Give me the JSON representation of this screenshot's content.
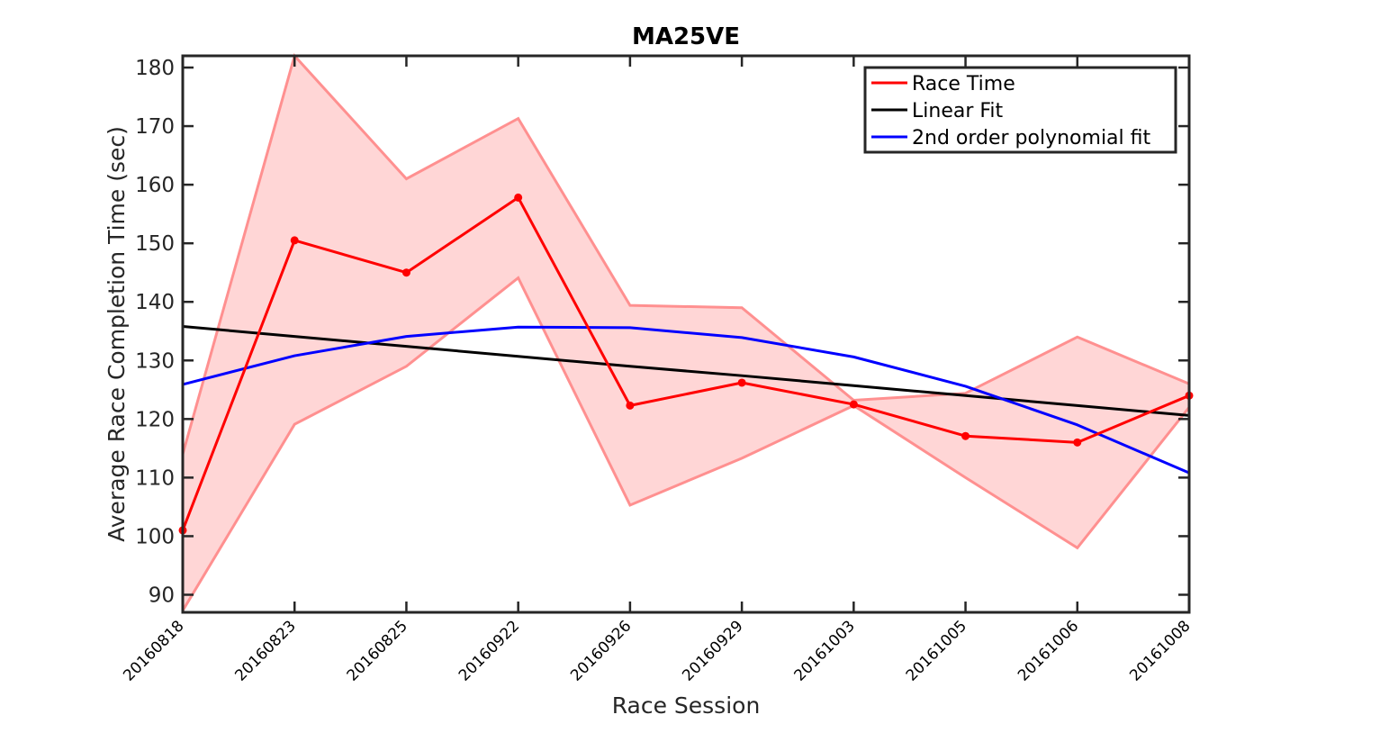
{
  "chart_data": {
    "type": "line",
    "title": "MA25VE",
    "xlabel": "Race Session",
    "ylabel": "Average Race Completion Time (sec)",
    "categories": [
      "20160818",
      "20160823",
      "20160825",
      "20160922",
      "20160926",
      "20160929",
      "20161003",
      "20161005",
      "20161006",
      "20161008"
    ],
    "ylim": [
      87,
      182
    ],
    "yticks": [
      90,
      100,
      110,
      120,
      130,
      140,
      150,
      160,
      170,
      180
    ],
    "series": [
      {
        "name": "Race Time",
        "color": "#ff0000",
        "markers": true,
        "values": [
          101,
          150.5,
          145,
          157.8,
          122.3,
          126.2,
          122.5,
          117.1,
          116,
          124
        ]
      },
      {
        "name": "Linear Fit",
        "color": "#000000",
        "markers": false,
        "values": [
          135.8,
          134.1,
          132.4,
          130.7,
          129,
          127.4,
          125.7,
          124,
          122.3,
          120.6
        ]
      },
      {
        "name": "2nd order polynomial fit",
        "color": "#0000ff",
        "markers": false,
        "values": [
          125.9,
          130.8,
          134.1,
          135.7,
          135.6,
          133.9,
          130.6,
          125.6,
          119,
          110.8
        ]
      }
    ],
    "band": {
      "color": "#ff9090",
      "fill": "#ffd6d6",
      "upper": [
        114,
        182,
        161,
        171.3,
        139.4,
        139,
        123.2,
        124.4,
        134,
        126
      ],
      "lower": [
        87.3,
        119.1,
        129,
        144.1,
        105.3,
        113.3,
        122.3,
        110,
        98,
        122
      ]
    },
    "legend_position": "top-right",
    "grid": false
  }
}
